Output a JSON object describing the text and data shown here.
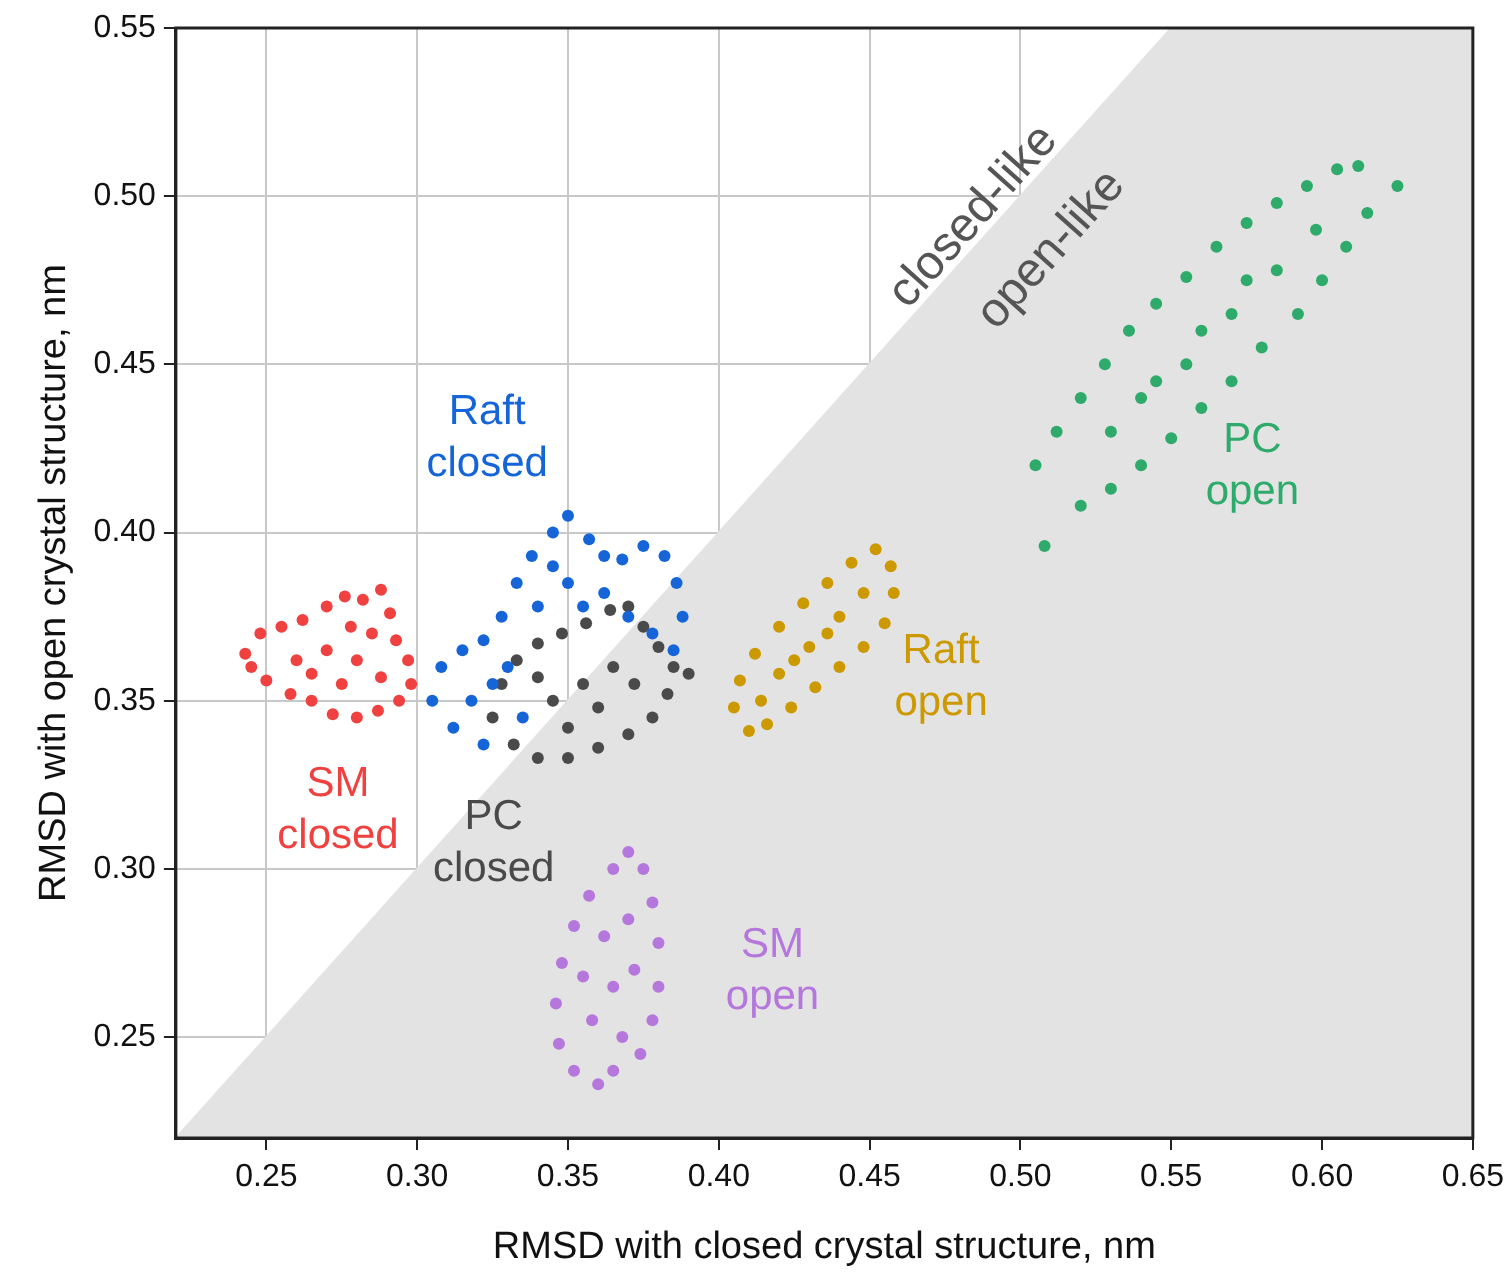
{
  "chart_data": {
    "type": "scatter",
    "xlabel": "RMSD with closed crystal structure, nm",
    "ylabel": "RMSD with open crystal structure, nm",
    "xlim": [
      0.22,
      0.65
    ],
    "ylim": [
      0.22,
      0.55
    ],
    "xticks": [
      0.25,
      {
        "value": 0.3,
        "label": "0.30"
      },
      0.35,
      {
        "value": 0.4,
        "label": "0.40"
      },
      0.45,
      {
        "value": 0.5,
        "label": "0.50"
      },
      0.55,
      {
        "value": 0.6,
        "label": "0.60"
      },
      0.65
    ],
    "yticks": [
      0.25,
      {
        "value": 0.3,
        "label": "0.30"
      },
      0.35,
      {
        "value": 0.4,
        "label": "0.40"
      },
      0.45,
      {
        "value": 0.5,
        "label": "0.50"
      },
      0.55
    ],
    "grid": true,
    "marker": "circle",
    "series": [
      {
        "name": "SM closed",
        "color": "#f04141",
        "x": [
          0.243,
          0.248,
          0.255,
          0.262,
          0.27,
          0.276,
          0.282,
          0.288,
          0.291,
          0.293,
          0.297,
          0.298,
          0.294,
          0.287,
          0.28,
          0.272,
          0.265,
          0.258,
          0.25,
          0.245,
          0.26,
          0.27,
          0.28,
          0.285,
          0.275,
          0.265,
          0.288,
          0.278
        ],
        "values": [
          0.364,
          0.37,
          0.372,
          0.374,
          0.378,
          0.381,
          0.38,
          0.383,
          0.376,
          0.368,
          0.362,
          0.355,
          0.35,
          0.347,
          0.345,
          0.346,
          0.35,
          0.352,
          0.356,
          0.36,
          0.362,
          0.365,
          0.362,
          0.37,
          0.355,
          0.358,
          0.357,
          0.372
        ]
      },
      {
        "name": "Raft closed",
        "color": "#1565d8",
        "x": [
          0.305,
          0.308,
          0.315,
          0.322,
          0.328,
          0.333,
          0.338,
          0.345,
          0.35,
          0.357,
          0.362,
          0.368,
          0.375,
          0.382,
          0.386,
          0.388,
          0.385,
          0.378,
          0.37,
          0.35,
          0.34,
          0.355,
          0.362,
          0.345,
          0.33,
          0.318,
          0.312,
          0.322,
          0.335,
          0.325
        ],
        "values": [
          0.35,
          0.36,
          0.365,
          0.368,
          0.375,
          0.385,
          0.393,
          0.4,
          0.405,
          0.398,
          0.393,
          0.392,
          0.396,
          0.393,
          0.385,
          0.375,
          0.365,
          0.37,
          0.375,
          0.385,
          0.378,
          0.378,
          0.382,
          0.39,
          0.36,
          0.35,
          0.342,
          0.337,
          0.345,
          0.355
        ]
      },
      {
        "name": "PC closed",
        "color": "#4a4a4a",
        "x": [
          0.325,
          0.328,
          0.333,
          0.34,
          0.348,
          0.356,
          0.364,
          0.37,
          0.375,
          0.38,
          0.385,
          0.39,
          0.383,
          0.378,
          0.37,
          0.36,
          0.35,
          0.34,
          0.332,
          0.345,
          0.355,
          0.365,
          0.36,
          0.35,
          0.34,
          0.372
        ],
        "values": [
          0.345,
          0.355,
          0.362,
          0.367,
          0.37,
          0.373,
          0.377,
          0.378,
          0.372,
          0.366,
          0.36,
          0.358,
          0.352,
          0.345,
          0.34,
          0.336,
          0.333,
          0.333,
          0.337,
          0.35,
          0.355,
          0.36,
          0.348,
          0.342,
          0.357,
          0.355
        ]
      },
      {
        "name": "SM open",
        "color": "#b577dc",
        "x": [
          0.365,
          0.37,
          0.375,
          0.378,
          0.38,
          0.38,
          0.378,
          0.374,
          0.365,
          0.36,
          0.352,
          0.347,
          0.346,
          0.348,
          0.352,
          0.357,
          0.362,
          0.37,
          0.365,
          0.358,
          0.372,
          0.355,
          0.368
        ],
        "values": [
          0.3,
          0.305,
          0.3,
          0.29,
          0.278,
          0.265,
          0.255,
          0.245,
          0.24,
          0.236,
          0.24,
          0.248,
          0.26,
          0.272,
          0.283,
          0.292,
          0.28,
          0.285,
          0.265,
          0.255,
          0.27,
          0.268,
          0.25
        ]
      },
      {
        "name": "Raft open",
        "color": "#cc9900",
        "x": [
          0.405,
          0.407,
          0.412,
          0.42,
          0.428,
          0.436,
          0.444,
          0.452,
          0.457,
          0.458,
          0.455,
          0.448,
          0.44,
          0.432,
          0.424,
          0.416,
          0.41,
          0.42,
          0.43,
          0.44,
          0.448,
          0.425,
          0.436,
          0.414
        ],
        "values": [
          0.348,
          0.356,
          0.364,
          0.372,
          0.379,
          0.385,
          0.391,
          0.395,
          0.39,
          0.382,
          0.373,
          0.366,
          0.36,
          0.354,
          0.348,
          0.343,
          0.341,
          0.358,
          0.366,
          0.375,
          0.382,
          0.362,
          0.37,
          0.35
        ]
      },
      {
        "name": "PC open",
        "color": "#2eaa6a",
        "x": [
          0.508,
          0.505,
          0.512,
          0.52,
          0.528,
          0.536,
          0.545,
          0.555,
          0.565,
          0.575,
          0.585,
          0.595,
          0.605,
          0.612,
          0.625,
          0.615,
          0.608,
          0.6,
          0.592,
          0.58,
          0.57,
          0.56,
          0.55,
          0.54,
          0.53,
          0.52,
          0.54,
          0.555,
          0.57,
          0.585,
          0.598,
          0.53,
          0.56,
          0.575,
          0.545
        ],
        "values": [
          0.396,
          0.42,
          0.43,
          0.44,
          0.45,
          0.46,
          0.468,
          0.476,
          0.485,
          0.492,
          0.498,
          0.503,
          0.508,
          0.509,
          0.503,
          0.495,
          0.485,
          0.475,
          0.465,
          0.455,
          0.445,
          0.437,
          0.428,
          0.42,
          0.413,
          0.408,
          0.44,
          0.45,
          0.465,
          0.478,
          0.49,
          0.43,
          0.46,
          0.475,
          0.445
        ]
      },
      {
        "type": "area",
        "marker": "none",
        "color": "#e3e3e3",
        "x": [
          0.22,
          0.55,
          0.65
        ],
        "values": [
          0.22,
          0.55,
          0.55
        ]
      }
    ],
    "annotations": [
      "closed-like",
      "open-like"
    ]
  }
}
